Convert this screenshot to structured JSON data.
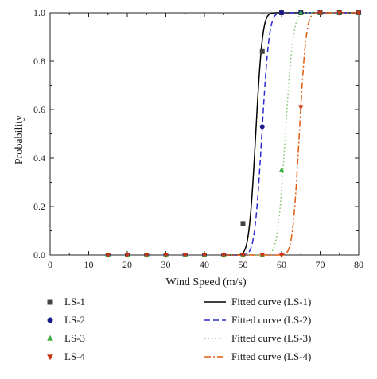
{
  "chart_data": {
    "type": "scatter",
    "title": "",
    "xlabel": "Wind Speed (m/s)",
    "ylabel": "Probability",
    "xlim": [
      0,
      80
    ],
    "ylim": [
      0,
      1.0
    ],
    "x_ticks": [
      0,
      10,
      20,
      30,
      40,
      50,
      60,
      70,
      80
    ],
    "y_ticks": [
      0.0,
      0.2,
      0.4,
      0.6,
      0.8,
      1.0
    ],
    "x_tick_labels": [
      "0",
      "10",
      "20",
      "30",
      "40",
      "50",
      "60",
      "70",
      "80"
    ],
    "y_tick_labels": [
      "0.0",
      "0.2",
      "0.4",
      "0.6",
      "0.8",
      "1.0"
    ],
    "grid": false,
    "legend_position": "bottom",
    "series": [
      {
        "name": "LS-1",
        "marker": "square",
        "color": "#444444",
        "x": [
          15,
          20,
          25,
          30,
          35,
          40,
          45,
          50,
          55,
          60,
          65,
          70,
          75,
          80
        ],
        "y": [
          0,
          0,
          0,
          0,
          0,
          0,
          0,
          0.13,
          0.84,
          1.0,
          1.0,
          1.0,
          1.0,
          1.0
        ]
      },
      {
        "name": "LS-2",
        "marker": "circle",
        "color": "#1a1a8c",
        "x": [
          15,
          20,
          25,
          30,
          35,
          40,
          45,
          50,
          55,
          60,
          65,
          70,
          75,
          80
        ],
        "y": [
          0,
          0,
          0,
          0,
          0,
          0,
          0,
          0.0,
          0.53,
          1.0,
          1.0,
          1.0,
          1.0,
          1.0
        ]
      },
      {
        "name": "LS-3",
        "marker": "triangle-up",
        "color": "#3cb043",
        "x": [
          15,
          20,
          25,
          30,
          35,
          40,
          45,
          50,
          55,
          60,
          65,
          70,
          75,
          80
        ],
        "y": [
          0,
          0,
          0,
          0,
          0,
          0,
          0,
          0,
          0,
          0.35,
          1.0,
          1.0,
          1.0,
          1.0
        ]
      },
      {
        "name": "LS-4",
        "marker": "triangle-down",
        "color": "#cc3311",
        "x": [
          15,
          20,
          25,
          30,
          35,
          40,
          45,
          50,
          55,
          60,
          65,
          70,
          75,
          80
        ],
        "y": [
          0,
          0,
          0,
          0,
          0,
          0,
          0,
          0,
          0,
          0,
          0.61,
          1.0,
          1.0,
          1.0
        ]
      }
    ],
    "fitted_curves": [
      {
        "name": "Fitted curve (LS-1)",
        "style": "solid",
        "color": "#000000",
        "mu": 53.3,
        "sigma": 1.4
      },
      {
        "name": "Fitted curve (LS-2)",
        "style": "dashed",
        "color": "#2a2ad0",
        "mu": 54.9,
        "sigma": 1.5
      },
      {
        "name": "Fitted curve (LS-3)",
        "style": "dotted",
        "color": "#7cc46a",
        "mu": 61.0,
        "sigma": 1.6
      },
      {
        "name": "Fitted curve (LS-4)",
        "style": "dashdot",
        "color": "#e05a10",
        "mu": 64.6,
        "sigma": 1.4
      }
    ]
  }
}
